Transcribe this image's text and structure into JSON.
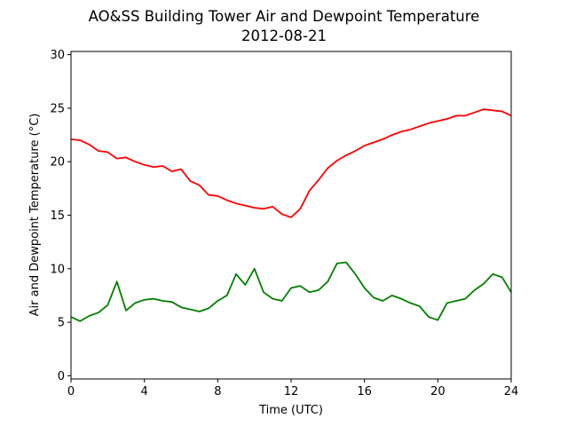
{
  "chart_data": {
    "type": "line",
    "title": "AO&SS Building Tower Air and Dewpoint Temperature",
    "subtitle": "2012-08-21",
    "xlabel": "Time (UTC)",
    "ylabel": "Air and Dewpoint Temperature (°C)",
    "xlim": [
      0,
      24
    ],
    "ylim": [
      -0.3,
      30.3
    ],
    "xticks": [
      0,
      4,
      8,
      12,
      16,
      20,
      24
    ],
    "yticks": [
      0,
      5,
      10,
      15,
      20,
      25,
      30
    ],
    "grid": false,
    "series": [
      {
        "color": "#ff0000",
        "x": [
          0,
          0.5,
          1,
          1.5,
          2,
          2.5,
          3,
          3.5,
          4,
          4.5,
          5,
          5.5,
          6,
          6.5,
          7,
          7.5,
          8,
          8.5,
          9,
          9.5,
          10,
          10.5,
          11,
          11.5,
          12,
          12.5,
          13,
          13.5,
          14,
          14.5,
          15,
          15.5,
          16,
          16.5,
          17,
          17.5,
          18,
          18.5,
          19,
          19.5,
          20,
          20.5,
          21,
          21.5,
          22,
          22.5,
          23,
          23.5,
          24
        ],
        "values": [
          22.1,
          22.0,
          21.6,
          21.0,
          20.9,
          20.3,
          20.4,
          20.0,
          19.7,
          19.5,
          19.6,
          19.1,
          19.3,
          18.2,
          17.8,
          16.9,
          16.8,
          16.4,
          16.1,
          15.9,
          15.7,
          15.6,
          15.8,
          15.1,
          14.8,
          15.6,
          17.3,
          18.3,
          19.4,
          20.1,
          20.6,
          21.0,
          21.5,
          21.8,
          22.1,
          22.5,
          22.8,
          23.0,
          23.3,
          23.6,
          23.8,
          24.0,
          24.3,
          24.3,
          24.6,
          24.9,
          24.8,
          24.7,
          24.3
        ]
      },
      {
        "color": "#008000",
        "x": [
          0,
          0.5,
          1,
          1.5,
          2,
          2.5,
          3,
          3.5,
          4,
          4.5,
          5,
          5.5,
          6,
          6.5,
          7,
          7.5,
          8,
          8.5,
          9,
          9.5,
          10,
          10.5,
          11,
          11.5,
          12,
          12.5,
          13,
          13.5,
          14,
          14.5,
          15,
          15.5,
          16,
          16.5,
          17,
          17.5,
          18,
          18.5,
          19,
          19.5,
          20,
          20.5,
          21,
          21.5,
          22,
          22.5,
          23,
          23.5,
          24
        ],
        "values": [
          5.5,
          5.1,
          5.6,
          5.9,
          6.6,
          8.8,
          6.1,
          6.8,
          7.1,
          7.2,
          7.0,
          6.9,
          6.4,
          6.2,
          6.0,
          6.3,
          7.0,
          7.5,
          9.5,
          8.5,
          10.0,
          7.8,
          7.2,
          7.0,
          8.2,
          8.4,
          7.8,
          8.0,
          8.8,
          10.5,
          10.6,
          9.5,
          8.2,
          7.3,
          7.0,
          7.5,
          7.2,
          6.8,
          6.5,
          5.5,
          5.2,
          6.8,
          7.0,
          7.2,
          8.0,
          8.6,
          9.5,
          9.2,
          7.8
        ]
      }
    ]
  }
}
